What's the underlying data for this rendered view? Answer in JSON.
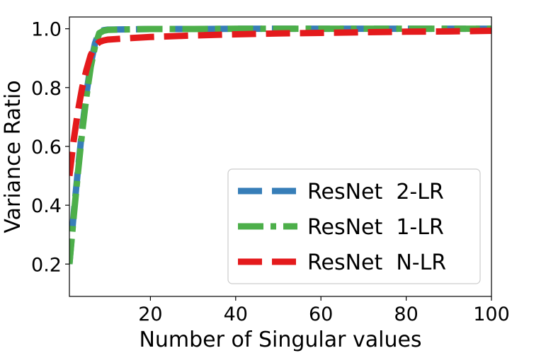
{
  "chart_data": {
    "type": "line",
    "xlabel": "Number of Singular values",
    "ylabel": "Variance Ratio",
    "xlim": [
      1,
      100
    ],
    "ylim": [
      0.09,
      1.04
    ],
    "xticks": [
      20,
      40,
      60,
      80,
      100
    ],
    "yticks": [
      0.2,
      0.4,
      0.6,
      0.8,
      1.0
    ],
    "ytick_labels": [
      "0.2",
      "0.4",
      "0.6",
      "0.8",
      "1.0"
    ],
    "grid": false,
    "legend_position": "lower-right",
    "series": [
      {
        "name": "ResNet  2-LR",
        "color": "#377eb8",
        "dash": "dashed",
        "x": [
          1,
          2,
          3,
          4,
          5,
          6,
          7,
          8,
          9,
          10,
          15,
          20,
          30,
          40,
          50,
          60,
          70,
          80,
          90,
          100
        ],
        "y": [
          0.2,
          0.37,
          0.52,
          0.66,
          0.78,
          0.88,
          0.95,
          0.99,
          0.995,
          0.997,
          0.998,
          0.999,
          0.999,
          1.0,
          1.0,
          1.0,
          1.0,
          1.0,
          1.0,
          1.0
        ]
      },
      {
        "name": "ResNet  1-LR",
        "color": "#4daf4a",
        "dash": "dashdot",
        "x": [
          1,
          2,
          3,
          4,
          5,
          6,
          7,
          8,
          9,
          10,
          15,
          20,
          30,
          40,
          50,
          60,
          70,
          80,
          90,
          100
        ],
        "y": [
          0.2,
          0.36,
          0.51,
          0.65,
          0.77,
          0.87,
          0.94,
          0.985,
          0.993,
          0.996,
          0.998,
          0.999,
          0.999,
          1.0,
          1.0,
          1.0,
          1.0,
          1.0,
          1.0,
          1.0
        ]
      },
      {
        "name": "ResNet  N-LR",
        "color": "#e41a1c",
        "dash": "dashed",
        "x": [
          1,
          2,
          3,
          4,
          5,
          6,
          7,
          8,
          9,
          10,
          15,
          20,
          30,
          40,
          50,
          60,
          70,
          80,
          90,
          100
        ],
        "y": [
          0.5,
          0.62,
          0.72,
          0.8,
          0.86,
          0.91,
          0.94,
          0.955,
          0.96,
          0.963,
          0.968,
          0.972,
          0.977,
          0.981,
          0.984,
          0.986,
          0.988,
          0.99,
          0.991,
          0.993
        ]
      }
    ]
  }
}
